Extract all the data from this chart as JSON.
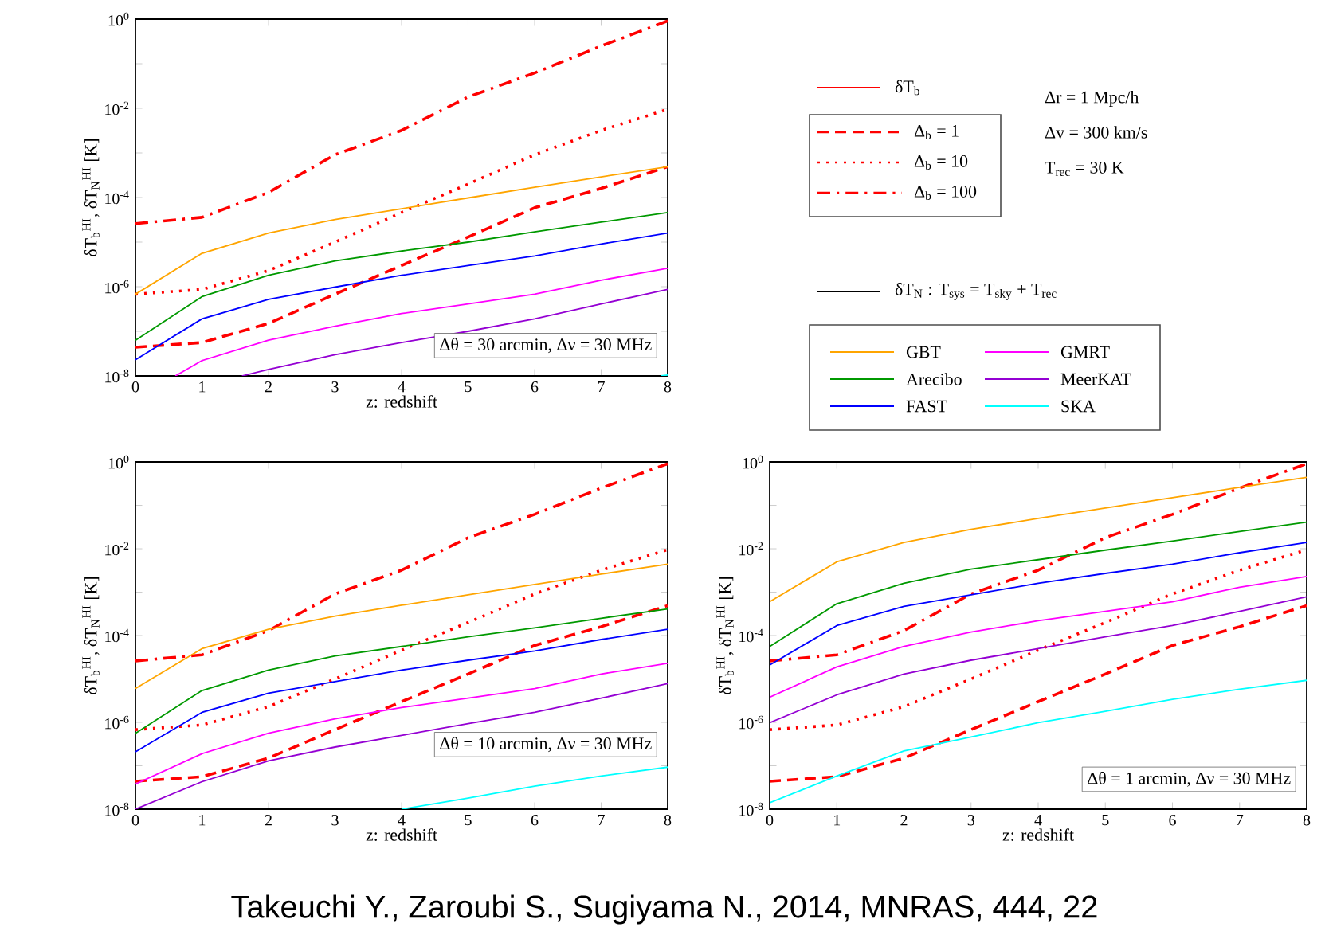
{
  "chart_data": [
    {
      "type": "line",
      "xlabel": "z: redshift",
      "ylabel": "δT$_{b}$$^{HI}$, δT$_{N}$$^{HI}$ [K]",
      "log": "y",
      "legend": "right",
      "xlim": [
        0,
        8
      ],
      "ylim": [
        1e-08,
        1
      ],
      "xticks": [
        0,
        1,
        2,
        3,
        4,
        5,
        6,
        7,
        8
      ],
      "yticks": [
        {
          "value": 1e-08,
          "label": "10$^{-8}$"
        },
        {
          "value": 1e-07,
          "label": null
        },
        {
          "value": 1e-06,
          "label": "10$^{-6}$"
        },
        {
          "value": 1e-05,
          "label": null
        },
        {
          "value": 0.0001,
          "label": "10$^{-4}$"
        },
        {
          "value": 0.001,
          "label": null
        },
        {
          "value": 0.01,
          "label": "10$^{-2}$"
        },
        {
          "value": 0.1,
          "label": null
        },
        {
          "value": 1,
          "label": "10$^{0}$"
        }
      ],
      "annotations": [
        "Δθ = 30 arcmin,  Δν = 30 MHz",
        "δT$_{b}$",
        "δT$_{N}$ : T$_{sys}$ = T$_{sky}$ + T$_{rec}$",
        "Δr = 1 Mpc/h",
        "Δv = 300 km/s",
        "T$_{rec}$ = 30 K"
      ],
      "x": [
        0,
        1,
        2,
        3,
        4,
        5,
        6,
        7,
        8
      ],
      "series": [
        {
          "name": "Δ$_{b}$ = 1",
          "color": "#ff0000",
          "line_style": "dashed",
          "values": [
            4.4e-08,
            5.6e-08,
            1.5e-07,
            6.8e-07,
            3e-06,
            1.3e-05,
            5.9e-05,
            0.00016,
            0.00049
          ]
        },
        {
          "name": "Δ$_{b}$ = 10",
          "color": "#ff0000",
          "line_style": "dotted",
          "values": [
            6.8e-07,
            8.7e-07,
            2.3e-06,
            1e-05,
            4.6e-05,
            0.0002,
            0.00091,
            0.0032,
            0.0095
          ]
        },
        {
          "name": "Δ$_{b}$ = 100",
          "color": "#ff0000",
          "line_style": "dashdot",
          "values": [
            2.6e-05,
            3.6e-05,
            0.00013,
            0.00091,
            0.0032,
            0.018,
            0.062,
            0.25,
            0.91
          ]
        },
        {
          "name": "GBT",
          "color": "#ffa500",
          "values": [
            6.8e-07,
            5.6e-06,
            1.6e-05,
            3.2e-05,
            5.6e-05,
            9.8e-05,
            0.00017,
            0.00029,
            0.00049
          ]
        },
        {
          "name": "Arecibo",
          "color": "#009900",
          "values": [
            6.3e-08,
            6e-07,
            1.8e-06,
            3.8e-06,
            6.3e-06,
            1e-05,
            1.7e-05,
            2.8e-05,
            4.6e-05
          ]
        },
        {
          "name": "FAST",
          "color": "#0000ff",
          "values": [
            2.3e-08,
            1.9e-07,
            5.2e-07,
            9.8e-07,
            1.8e-06,
            3e-06,
            4.9e-06,
            9.1e-06,
            1.6e-05
          ]
        },
        {
          "name": "GMRT",
          "color": "#ff00ff",
          "x": [
            0.6,
            1,
            2,
            3,
            4,
            5,
            6,
            7,
            8
          ],
          "values": [
            1e-08,
            2.2e-08,
            6.3e-08,
            1.3e-07,
            2.5e-07,
            4.1e-07,
            6.8e-07,
            1.4e-06,
            2.6e-06
          ]
        },
        {
          "name": "MeerKAT",
          "color": "#9400d3",
          "x": [
            1.6,
            2,
            3,
            4,
            5,
            6,
            7,
            8
          ],
          "values": [
            1e-08,
            1.4e-08,
            3e-08,
            5.6e-08,
            1e-07,
            1.9e-07,
            4.1e-07,
            8.7e-07
          ]
        },
        {
          "name": "SKA",
          "color": "#00ffff",
          "x": [
            7.9,
            8
          ],
          "values": [
            1e-08,
            1.05e-08
          ]
        }
      ]
    },
    {
      "type": "line",
      "xlabel": "z: redshift",
      "ylabel": "δT$_{b}$$^{HI}$, δT$_{N}$$^{HI}$ [K]",
      "log": "y",
      "xlim": [
        0,
        8
      ],
      "ylim": [
        1e-08,
        1
      ],
      "xticks": [
        0,
        1,
        2,
        3,
        4,
        5,
        6,
        7,
        8
      ],
      "yticks": [
        {
          "value": 1e-08,
          "label": "10$^{-8}$"
        },
        {
          "value": 1e-07,
          "label": null
        },
        {
          "value": 1e-06,
          "label": "10$^{-6}$"
        },
        {
          "value": 1e-05,
          "label": null
        },
        {
          "value": 0.0001,
          "label": "10$^{-4}$"
        },
        {
          "value": 0.001,
          "label": null
        },
        {
          "value": 0.01,
          "label": "10$^{-2}$"
        },
        {
          "value": 0.1,
          "label": null
        },
        {
          "value": 1,
          "label": "10$^{0}$"
        }
      ],
      "annotations": [
        "Δθ = 10 arcmin,  Δν = 30 MHz",
        "Takeuchi Y., Zaroubi S., Sugiyama N., 2014, MNRAS, 444, 22"
      ],
      "x": [
        0,
        1,
        2,
        3,
        4,
        5,
        6,
        7,
        8
      ],
      "series": [
        {
          "color": "#ff0000",
          "line_style": "dashed",
          "values": [
            4.4e-08,
            5.6e-08,
            1.5e-07,
            6.8e-07,
            3e-06,
            1.3e-05,
            5.9e-05,
            0.00016,
            0.00049
          ]
        },
        {
          "color": "#ff0000",
          "line_style": "dotted",
          "values": [
            6.8e-07,
            8.7e-07,
            2.3e-06,
            1e-05,
            4.6e-05,
            0.0002,
            0.00091,
            0.0032,
            0.0095
          ]
        },
        {
          "color": "#ff0000",
          "line_style": "dashdot",
          "values": [
            2.6e-05,
            3.6e-05,
            0.00013,
            0.00091,
            0.0032,
            0.018,
            0.062,
            0.25,
            0.91
          ]
        },
        {
          "color": "#ffa500",
          "values": [
            6e-06,
            5e-05,
            0.00014,
            0.00028,
            0.0005,
            0.00087,
            0.0015,
            0.0026,
            0.0044
          ]
        },
        {
          "color": "#009900",
          "values": [
            5.6e-07,
            5.4e-06,
            1.6e-05,
            3.4e-05,
            5.6e-05,
            9.3e-05,
            0.00015,
            0.00025,
            0.00041
          ]
        },
        {
          "color": "#0000ff",
          "values": [
            2.1e-07,
            1.7e-06,
            4.7e-06,
            8.7e-06,
            1.6e-05,
            2.7e-05,
            4.4e-05,
            8.1e-05,
            0.00014
          ]
        },
        {
          "color": "#ff00ff",
          "values": [
            3.8e-08,
            1.9e-07,
            5.6e-07,
            1.2e-06,
            2.2e-06,
            3.6e-06,
            6e-06,
            1.3e-05,
            2.3e-05
          ]
        },
        {
          "color": "#9400d3",
          "values": [
            1e-08,
            4.3e-08,
            1.3e-07,
            2.7e-07,
            5e-07,
            9.3e-07,
            1.7e-06,
            3.6e-06,
            7.8e-06
          ]
        },
        {
          "color": "#00ffff",
          "x": [
            4,
            5,
            6,
            7,
            8
          ],
          "values": [
            1e-08,
            1.8e-08,
            3.4e-08,
            5.8e-08,
            9.3e-08
          ]
        }
      ]
    },
    {
      "type": "line",
      "xlabel": "z: redshift",
      "ylabel": "δT$_{b}$$^{HI}$, δT$_{N}$$^{HI}$ [K]",
      "log": "y",
      "xlim": [
        0,
        8
      ],
      "ylim": [
        1e-08,
        1
      ],
      "xticks": [
        0,
        1,
        2,
        3,
        4,
        5,
        6,
        7,
        8
      ],
      "yticks": [
        {
          "value": 1e-08,
          "label": "10$^{-8}$"
        },
        {
          "value": 1e-07,
          "label": null
        },
        {
          "value": 1e-06,
          "label": "10$^{-6}$"
        },
        {
          "value": 1e-05,
          "label": null
        },
        {
          "value": 0.0001,
          "label": "10$^{-4}$"
        },
        {
          "value": 0.001,
          "label": null
        },
        {
          "value": 0.01,
          "label": "10$^{-2}$"
        },
        {
          "value": 0.1,
          "label": null
        },
        {
          "value": 1,
          "label": "10$^{0}$"
        }
      ],
      "annotations": [
        "Δθ = 1 arcmin,  Δν = 30 MHz"
      ],
      "x": [
        0,
        1,
        2,
        3,
        4,
        5,
        6,
        7,
        8
      ],
      "series": [
        {
          "color": "#ff0000",
          "line_style": "dashed",
          "values": [
            4.4e-08,
            5.6e-08,
            1.5e-07,
            6.8e-07,
            3e-06,
            1.3e-05,
            5.9e-05,
            0.00016,
            0.00049
          ]
        },
        {
          "color": "#ff0000",
          "line_style": "dotted",
          "values": [
            6.8e-07,
            8.7e-07,
            2.3e-06,
            1e-05,
            4.6e-05,
            0.0002,
            0.00091,
            0.0032,
            0.0095
          ]
        },
        {
          "color": "#ff0000",
          "line_style": "dashdot",
          "values": [
            2.6e-05,
            3.6e-05,
            0.00013,
            0.00091,
            0.0032,
            0.018,
            0.062,
            0.25,
            0.91
          ]
        },
        {
          "color": "#ffa500",
          "values": [
            0.0006,
            0.005,
            0.014,
            0.028,
            0.05,
            0.087,
            0.15,
            0.26,
            0.44
          ]
        },
        {
          "color": "#009900",
          "values": [
            5.6e-05,
            0.00054,
            0.0016,
            0.0034,
            0.0056,
            0.0093,
            0.015,
            0.025,
            0.041
          ]
        },
        {
          "color": "#0000ff",
          "values": [
            2.1e-05,
            0.00017,
            0.00047,
            0.00087,
            0.0016,
            0.0027,
            0.0044,
            0.0081,
            0.014
          ]
        },
        {
          "color": "#ff00ff",
          "values": [
            3.8e-06,
            1.9e-05,
            5.6e-05,
            0.00012,
            0.00022,
            0.00036,
            0.0006,
            0.0013,
            0.0023
          ]
        },
        {
          "color": "#9400d3",
          "values": [
            9.8e-07,
            4.3e-06,
            1.3e-05,
            2.7e-05,
            5e-05,
            9.3e-05,
            0.00017,
            0.00036,
            0.00078
          ]
        },
        {
          "color": "#00ffff",
          "values": [
            1.4e-08,
            5.8e-08,
            2.2e-07,
            4.6e-07,
            9.8e-07,
            1.8e-06,
            3.4e-06,
            5.8e-06,
            9.3e-06
          ]
        }
      ]
    }
  ]
}
